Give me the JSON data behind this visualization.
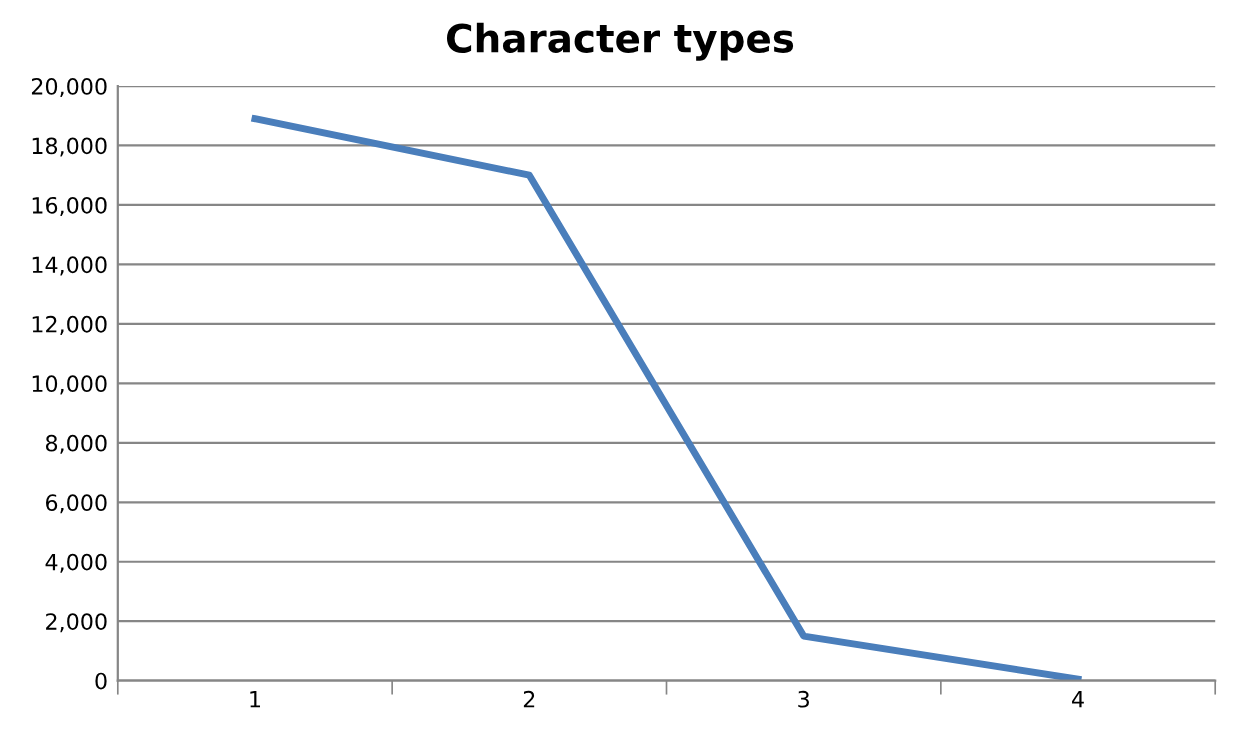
{
  "chart_data": {
    "type": "line",
    "title": "Character types",
    "categories": [
      "1",
      "2",
      "3",
      "4"
    ],
    "series": [
      {
        "color": "#4a7ebb",
        "values": [
          18900,
          17000,
          1500,
          50
        ]
      }
    ],
    "ylim": [
      0,
      20000
    ],
    "yticks": [
      {
        "value": 0,
        "label": "0"
      },
      {
        "value": 2000,
        "label": "2,000"
      },
      {
        "value": 4000,
        "label": "4,000"
      },
      {
        "value": 6000,
        "label": "6,000"
      },
      {
        "value": 8000,
        "label": "8,000"
      },
      {
        "value": 10000,
        "label": "10,000"
      },
      {
        "value": 12000,
        "label": "12,000"
      },
      {
        "value": 14000,
        "label": "14,000"
      },
      {
        "value": 16000,
        "label": "16,000"
      },
      {
        "value": 18000,
        "label": "18,000"
      },
      {
        "value": 20000,
        "label": "20,000"
      }
    ],
    "grid": "y",
    "marker": "none",
    "line_style": "solid"
  }
}
